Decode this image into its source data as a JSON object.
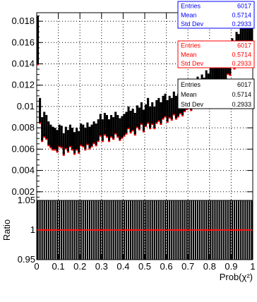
{
  "chart_data": [
    {
      "type": "bar",
      "panel": "top",
      "xlabel": "",
      "ylabel": "",
      "xlim": [
        0,
        1
      ],
      "ylim": [
        0,
        0.0188
      ],
      "yticks": [
        "0.002",
        "0.004",
        "0.006",
        "0.008",
        "0.01",
        "0.012",
        "0.014",
        "0.016",
        "0.018"
      ],
      "ytick_values": [
        0.002,
        0.004,
        0.006,
        0.008,
        0.01,
        0.012,
        0.014,
        0.016,
        0.018
      ],
      "grid": true,
      "series": [
        {
          "color": "#0000ff",
          "stats": {
            "entries_label": "Entries",
            "entries": "6017",
            "mean_label": "Mean",
            "mean": "0.5714",
            "std_label": "Std Dev",
            "std": "0.2933"
          }
        },
        {
          "color": "#ff0000",
          "stats": {
            "entries_label": "Entries",
            "entries": "6017",
            "mean_label": "Mean",
            "mean": "0.5714",
            "std_label": "Std Dev",
            "std": "0.2933"
          }
        },
        {
          "color": "#000000",
          "stats": {
            "entries_label": "Entries",
            "entries": "6017",
            "mean_label": "Mean",
            "mean": "0.5714",
            "std_label": "Std Dev",
            "std": "0.2933"
          }
        }
      ],
      "bins_lo": [
        0.014,
        0.0085,
        0.0068,
        0.0072,
        0.007,
        0.0064,
        0.0062,
        0.006,
        0.006,
        0.0058,
        0.0063,
        0.0062,
        0.0055,
        0.0061,
        0.0058,
        0.0063,
        0.006,
        0.0056,
        0.006,
        0.0057,
        0.0064,
        0.0063,
        0.006,
        0.0065,
        0.0061,
        0.0063,
        0.0066,
        0.0064,
        0.0068,
        0.0073,
        0.0068,
        0.0074,
        0.0072,
        0.0068,
        0.0072,
        0.007,
        0.0075,
        0.0072,
        0.0069,
        0.0071,
        0.0073,
        0.0075,
        0.008,
        0.0076,
        0.0078,
        0.0074,
        0.0081,
        0.0079,
        0.0084,
        0.0077,
        0.0082,
        0.0085,
        0.008,
        0.0084,
        0.008,
        0.0085,
        0.0087,
        0.0084,
        0.0089,
        0.0091,
        0.0086,
        0.009,
        0.0088,
        0.0093,
        0.0089,
        0.0091,
        0.0094,
        0.0092,
        0.0096,
        0.0098,
        0.01,
        0.0097,
        0.0103,
        0.0099,
        0.0106,
        0.0102,
        0.0108,
        0.0105,
        0.011,
        0.0108,
        0.0114,
        0.0112,
        0.0118,
        0.0116,
        0.0122,
        0.0119,
        0.0126,
        0.0125,
        0.0131,
        0.013,
        0.0138,
        0.0136,
        0.0144,
        0.0142,
        0.015,
        0.0148,
        0.0156,
        0.0155,
        0.016,
        0.0158
      ],
      "bins_hi": [
        0.0185,
        0.0108,
        0.009,
        0.0095,
        0.0092,
        0.0086,
        0.0083,
        0.0081,
        0.008,
        0.0078,
        0.0083,
        0.0082,
        0.0075,
        0.0081,
        0.0078,
        0.0083,
        0.008,
        0.0076,
        0.008,
        0.0077,
        0.0084,
        0.0083,
        0.008,
        0.0085,
        0.0081,
        0.0083,
        0.0086,
        0.0084,
        0.0088,
        0.0093,
        0.0088,
        0.0094,
        0.0092,
        0.0088,
        0.0092,
        0.009,
        0.0095,
        0.0092,
        0.0089,
        0.0091,
        0.0093,
        0.0095,
        0.01,
        0.0096,
        0.0098,
        0.0094,
        0.0101,
        0.0099,
        0.0104,
        0.0097,
        0.0102,
        0.0108,
        0.01,
        0.0104,
        0.01,
        0.0106,
        0.0108,
        0.0104,
        0.011,
        0.0112,
        0.0106,
        0.011,
        0.0108,
        0.0114,
        0.011,
        0.0112,
        0.0116,
        0.0113,
        0.0118,
        0.012,
        0.0124,
        0.0119,
        0.0126,
        0.0121,
        0.0128,
        0.0124,
        0.013,
        0.0127,
        0.0134,
        0.0131,
        0.0138,
        0.0136,
        0.0142,
        0.014,
        0.0148,
        0.0143,
        0.0152,
        0.015,
        0.0157,
        0.0155,
        0.0164,
        0.0162,
        0.017,
        0.0168,
        0.0176,
        0.0174,
        0.018,
        0.0178,
        0.0184,
        0.0182
      ]
    },
    {
      "type": "scatter",
      "panel": "bottom",
      "xlabel": "Prob(χ²)",
      "ylabel": "Ratio",
      "xlim": [
        0,
        1
      ],
      "ylim": [
        0.95,
        1.05
      ],
      "xticks": [
        "0",
        "0.1",
        "0.2",
        "0.3",
        "0.4",
        "0.5",
        "0.6",
        "0.7",
        "0.8",
        "0.9",
        "1"
      ],
      "xtick_values": [
        0,
        0.1,
        0.2,
        0.3,
        0.4,
        0.5,
        0.6,
        0.7,
        0.8,
        0.9,
        1
      ],
      "yticks": [
        "0.95",
        "1",
        "1.05"
      ],
      "ytick_values": [
        0.95,
        1,
        1.05
      ],
      "reference_line": 1,
      "grid": true,
      "series": [
        {
          "color": "#ff0000",
          "x_center": [
            0.005,
            0.015,
            0.025,
            0.035,
            0.045,
            0.055,
            0.065,
            0.075,
            0.085,
            0.095,
            0.105,
            0.115,
            0.125,
            0.135,
            0.145,
            0.155,
            0.165,
            0.175,
            0.185,
            0.195,
            0.205,
            0.215,
            0.225,
            0.235,
            0.245,
            0.255,
            0.265,
            0.275,
            0.285,
            0.295,
            0.305,
            0.315,
            0.325,
            0.335,
            0.345,
            0.355,
            0.365,
            0.375,
            0.385,
            0.395,
            0.405,
            0.415,
            0.425,
            0.435,
            0.445,
            0.455,
            0.465,
            0.475,
            0.485,
            0.495,
            0.505,
            0.515,
            0.525,
            0.535,
            0.545,
            0.555,
            0.565,
            0.575,
            0.585,
            0.595,
            0.605,
            0.615,
            0.625,
            0.635,
            0.645,
            0.655,
            0.665,
            0.675,
            0.685,
            0.695,
            0.705,
            0.715,
            0.725,
            0.735,
            0.745,
            0.755,
            0.765,
            0.775,
            0.785,
            0.795,
            0.805,
            0.815,
            0.825,
            0.835,
            0.845,
            0.855,
            0.865,
            0.875,
            0.885,
            0.895,
            0.905,
            0.915,
            0.925,
            0.935,
            0.945,
            0.955,
            0.965,
            0.975,
            0.985,
            0.995
          ],
          "ratio": 1
        }
      ]
    }
  ]
}
